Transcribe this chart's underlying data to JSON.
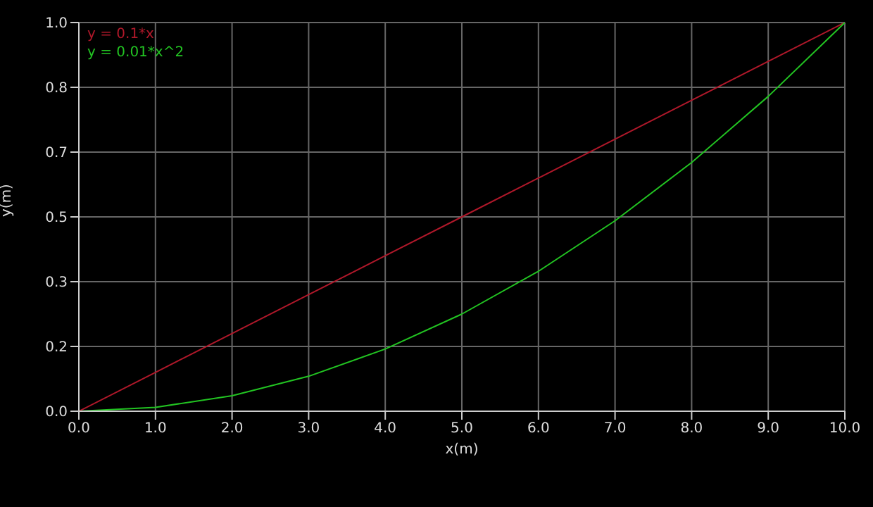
{
  "chart_data": {
    "type": "line",
    "xlabel": "x(m)",
    "ylabel": "y(m)",
    "x": [
      0,
      1,
      2,
      3,
      4,
      5,
      6,
      7,
      8,
      9,
      10
    ],
    "series": [
      {
        "name": "y = 0.1*x",
        "color": "#b0182a",
        "values": [
          0,
          0.1,
          0.2,
          0.3,
          0.4,
          0.5,
          0.6,
          0.7,
          0.8,
          0.9,
          1.0
        ]
      },
      {
        "name": "y = 0.01*x^2",
        "color": "#22c422",
        "values": [
          0,
          0.01,
          0.04,
          0.09,
          0.16,
          0.25,
          0.36,
          0.49,
          0.64,
          0.81,
          1.0
        ]
      }
    ],
    "xlim": [
      0,
      10
    ],
    "xticks": [
      {
        "value": 0,
        "label": "0.0"
      },
      {
        "value": 1,
        "label": "1.0"
      },
      {
        "value": 2,
        "label": "2.0"
      },
      {
        "value": 3,
        "label": "3.0"
      },
      {
        "value": 4,
        "label": "4.0"
      },
      {
        "value": 5,
        "label": "5.0"
      },
      {
        "value": 6,
        "label": "6.0"
      },
      {
        "value": 7,
        "label": "7.0"
      },
      {
        "value": 8,
        "label": "8.0"
      },
      {
        "value": 9,
        "label": "9.0"
      },
      {
        "value": 10,
        "label": "10.0"
      }
    ],
    "ylim": [
      0,
      1
    ],
    "yticks": [
      {
        "value": 0,
        "label": "0.0"
      },
      {
        "value": 0.16667,
        "label": "0.2"
      },
      {
        "value": 0.33333,
        "label": "0.3"
      },
      {
        "value": 0.5,
        "label": "0.5"
      },
      {
        "value": 0.66667,
        "label": "0.7"
      },
      {
        "value": 0.83333,
        "label": "0.8"
      },
      {
        "value": 1,
        "label": "1.0"
      }
    ],
    "grid": true,
    "legend": "top left",
    "marker": "none",
    "line_style": "solid"
  }
}
